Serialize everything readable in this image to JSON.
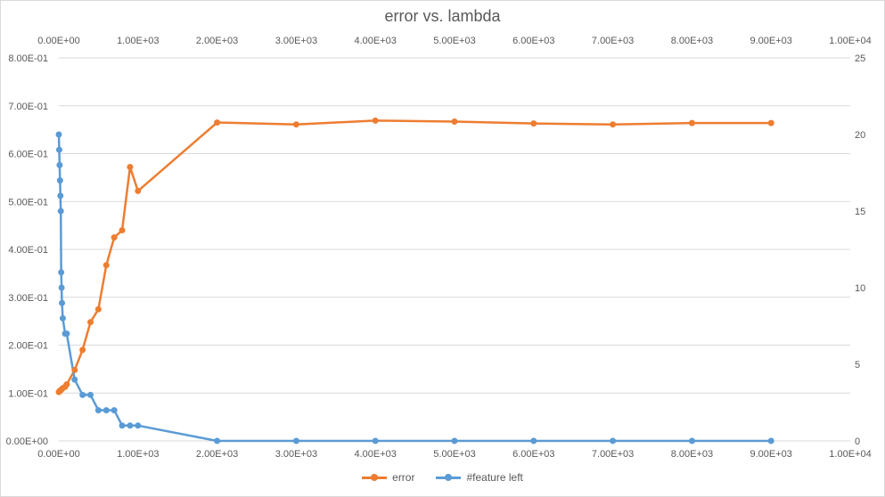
{
  "chart_data": {
    "type": "scatter",
    "title": "error vs. lambda",
    "x_primary_ticks": [
      "0.00E+00",
      "1.00E+03",
      "2.00E+03",
      "3.00E+03",
      "4.00E+03",
      "5.00E+03",
      "6.00E+03",
      "7.00E+03",
      "8.00E+03",
      "9.00E+03",
      "1.00E+04"
    ],
    "x_secondary_ticks": [
      "0.00E+00",
      "1.00E+03",
      "2.00E+03",
      "3.00E+03",
      "4.00E+03",
      "5.00E+03",
      "6.00E+03",
      "7.00E+03",
      "8.00E+03",
      "9.00E+03",
      "1.00E+04"
    ],
    "y_left_ticks": [
      "0.00E+00",
      "1.00E-01",
      "2.00E-01",
      "3.00E-01",
      "4.00E-01",
      "5.00E-01",
      "6.00E-01",
      "7.00E-01",
      "8.00E-01"
    ],
    "y_right_ticks": [
      "0",
      "5",
      "10",
      "15",
      "20",
      "25"
    ],
    "xlim": [
      0,
      10000
    ],
    "ylim_left": [
      0,
      0.8
    ],
    "ylim_right": [
      0,
      25
    ],
    "grid": true,
    "legend_position": "bottom",
    "series": [
      {
        "name": "error",
        "axis": "left",
        "color": "#ED7D31",
        "x": [
          0,
          10,
          20,
          30,
          50,
          80,
          100,
          200,
          300,
          400,
          500,
          600,
          700,
          800,
          900,
          1000,
          2000,
          3000,
          4000,
          5000,
          6000,
          7000,
          8000,
          9000
        ],
        "y": [
          0.102,
          0.104,
          0.105,
          0.107,
          0.11,
          0.113,
          0.118,
          0.148,
          0.19,
          0.248,
          0.275,
          0.367,
          0.425,
          0.44,
          0.572,
          0.522,
          0.665,
          0.661,
          0.669,
          0.667,
          0.663,
          0.661,
          0.664,
          0.664
        ]
      },
      {
        "name": "#feature left",
        "axis": "right",
        "color": "#5B9BD5",
        "x": [
          0,
          5,
          10,
          15,
          20,
          25,
          30,
          35,
          40,
          50,
          80,
          100,
          200,
          300,
          400,
          500,
          600,
          700,
          800,
          900,
          1000,
          2000,
          3000,
          4000,
          5000,
          6000,
          7000,
          8000,
          9000
        ],
        "y": [
          20,
          19,
          18,
          17,
          16,
          15,
          11,
          10,
          9,
          8,
          7,
          7,
          4,
          3,
          3,
          2,
          2,
          2,
          1,
          1,
          1,
          0,
          0,
          0,
          0,
          0,
          0,
          0,
          0
        ]
      }
    ]
  }
}
